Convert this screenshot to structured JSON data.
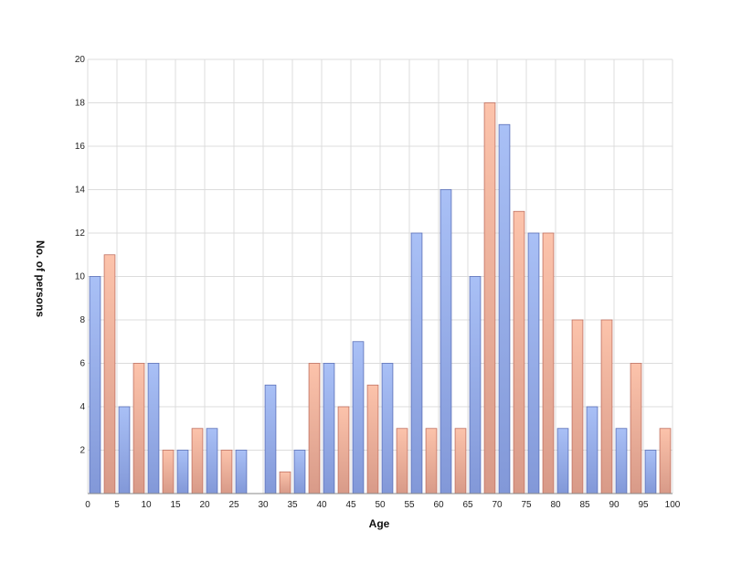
{
  "chart_data": {
    "type": "bar",
    "title": "",
    "xlabel": "Age",
    "ylabel": "No. of persons",
    "xlim": [
      0,
      100
    ],
    "ylim": [
      0,
      20
    ],
    "x_ticks": [
      0,
      5,
      10,
      15,
      20,
      25,
      30,
      35,
      40,
      45,
      50,
      55,
      60,
      65,
      70,
      75,
      80,
      85,
      90,
      95,
      100
    ],
    "y_ticks": [
      2,
      4,
      6,
      8,
      10,
      12,
      14,
      16,
      18,
      20
    ],
    "grid": true,
    "legend": "none",
    "bin_starts": [
      0,
      5,
      10,
      15,
      20,
      25,
      30,
      35,
      40,
      45,
      50,
      55,
      60,
      65,
      70,
      75,
      80,
      85,
      90,
      95
    ],
    "series": [
      {
        "color_top": "#a9c0f6",
        "color_bottom": "#8298d8",
        "stroke": "#5a6fb8",
        "values": [
          10,
          4,
          6,
          2,
          3,
          2,
          5,
          2,
          6,
          7,
          6,
          12,
          14,
          10,
          17,
          12,
          3,
          4,
          3,
          2
        ]
      },
      {
        "color_top": "#fcc3ab",
        "color_bottom": "#d89a88",
        "stroke": "#c07060",
        "values": [
          11,
          6,
          2,
          3,
          2,
          0,
          1,
          6,
          4,
          5,
          3,
          3,
          3,
          18,
          13,
          12,
          8,
          8,
          6,
          3
        ]
      }
    ]
  }
}
